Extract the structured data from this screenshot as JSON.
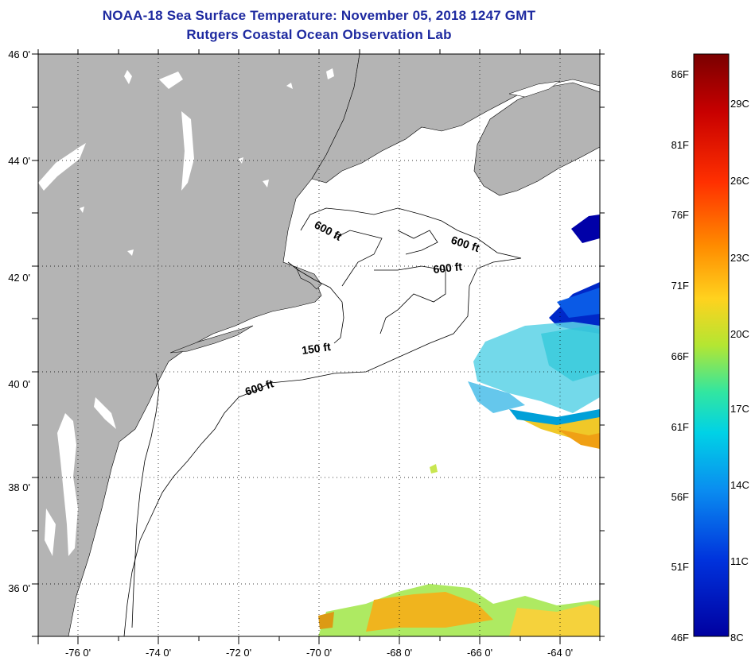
{
  "title": "NOAA-18 Sea Surface Temperature:  November 05, 2018 1247 GMT",
  "subtitle": "Rutgers Coastal Ocean Observation Lab",
  "map": {
    "lon_range": [
      -77,
      -63
    ],
    "lat_range": [
      35,
      46
    ],
    "lon_ticks": [
      {
        "value": -76,
        "label": "-76 0'"
      },
      {
        "value": -74,
        "label": "-74 0'"
      },
      {
        "value": -72,
        "label": "-72 0'"
      },
      {
        "value": -70,
        "label": "-70 0'"
      },
      {
        "value": -68,
        "label": "-68 0'"
      },
      {
        "value": -66,
        "label": "-66 0'"
      },
      {
        "value": -64,
        "label": "-64 0'"
      }
    ],
    "lat_ticks": [
      {
        "value": 46,
        "label": "46 0'"
      },
      {
        "value": 44,
        "label": "44 0'"
      },
      {
        "value": 42,
        "label": "42 0'"
      },
      {
        "value": 40,
        "label": "40 0'"
      },
      {
        "value": 38,
        "label": "38 0'"
      },
      {
        "value": 36,
        "label": "36 0'"
      }
    ],
    "contour_labels": [
      {
        "text": "600 ft",
        "lon": -70.3,
        "lat": 42.9
      },
      {
        "text": "600 ft",
        "lon": -66.6,
        "lat": 42.5
      },
      {
        "text": "600 ft",
        "lon": -67.3,
        "lat": 42.1
      },
      {
        "text": "150 ft",
        "lon": -70.3,
        "lat": 40.7
      },
      {
        "text": "600 ft",
        "lon": -71.6,
        "lat": 39.9
      }
    ],
    "land_color": "#b4b4b4",
    "ocean_color": "#ffffff"
  },
  "colorbar": {
    "fahrenheit": [
      "86F",
      "81F",
      "76F",
      "71F",
      "66F",
      "61F",
      "56F",
      "51F",
      "46F"
    ],
    "celsius": [
      "29C",
      "26C",
      "23C",
      "20C",
      "17C",
      "14C",
      "11C",
      "8C"
    ],
    "colors": [
      "#7a0000",
      "#c80000",
      "#ff3000",
      "#ff8c00",
      "#ffd21e",
      "#b4e632",
      "#32e6a0",
      "#00d2e6",
      "#0a8cf0",
      "#0032dc",
      "#0000a0"
    ]
  }
}
